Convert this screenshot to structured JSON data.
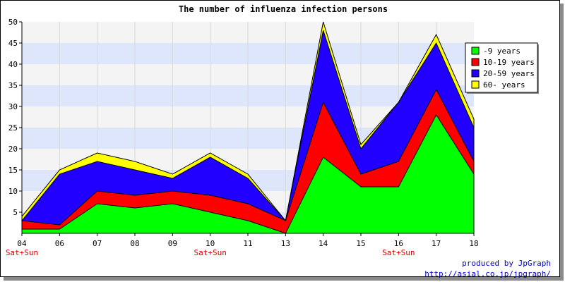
{
  "chart_data": {
    "type": "area",
    "stacked": true,
    "title": "The number of influenza infection persons",
    "xlabel": "",
    "ylabel": "",
    "categories": [
      "04",
      "06",
      "07",
      "08",
      "09",
      "10",
      "11",
      "13",
      "14",
      "15",
      "16",
      "17",
      "18"
    ],
    "weekend_labels": [
      "Sat+Sun",
      "",
      "",
      "",
      "",
      "Sat+Sun",
      "",
      "",
      "",
      "",
      "Sat+Sun",
      "",
      ""
    ],
    "ylim": [
      0,
      50
    ],
    "yticks": [
      5,
      10,
      15,
      20,
      25,
      30,
      35,
      40,
      45,
      50
    ],
    "grid": "horizontal bands",
    "legend_position": "top-right",
    "series": [
      {
        "name": "-9 years",
        "color": "#00ff00",
        "values": [
          1,
          1,
          7,
          6,
          7,
          5,
          3,
          0,
          18,
          11,
          11,
          28,
          14
        ]
      },
      {
        "name": "10-19 years",
        "color": "#ff0000",
        "values": [
          2,
          1,
          3,
          3,
          3,
          4,
          4,
          3,
          13,
          3,
          6,
          6,
          3
        ]
      },
      {
        "name": "20-59 years",
        "color": "#2200ff",
        "values": [
          0,
          12,
          7,
          6,
          3,
          9,
          6,
          0,
          17,
          6,
          14,
          11,
          8
        ]
      },
      {
        "name": "60- years",
        "color": "#ffff00",
        "values": [
          1,
          1,
          2,
          2,
          1,
          1,
          1,
          0,
          2,
          1,
          0,
          2,
          2
        ]
      }
    ]
  },
  "credit": {
    "line1": "produced by JpGraph",
    "line2": "http://asial.co.jp/jpgraph/"
  }
}
